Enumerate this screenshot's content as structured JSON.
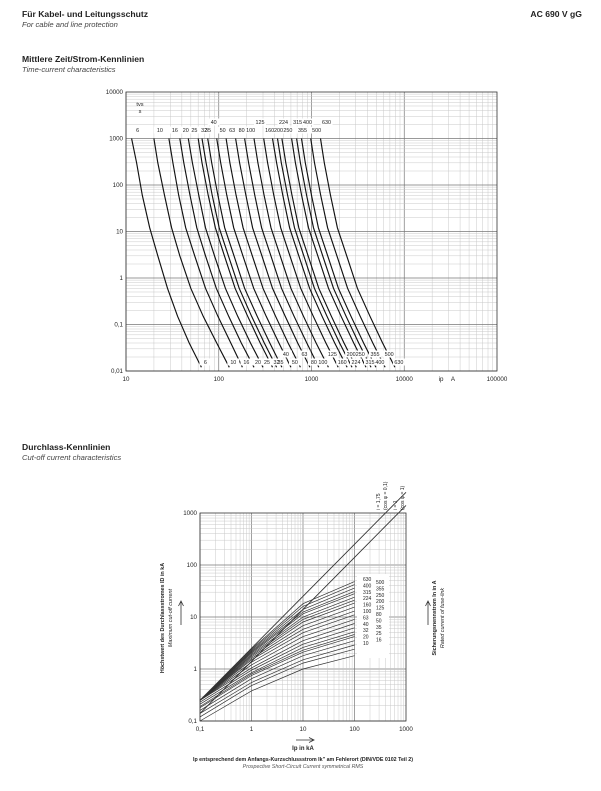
{
  "header": {
    "title_de": "Für Kabel- und Leitungsschutz",
    "title_en": "For cable and line protection",
    "rating": "AC 690 V gG"
  },
  "section1": {
    "title_de": "Mittlere Zeit/Strom-Kennlinien",
    "title_en": "Time-current characteristics"
  },
  "section2": {
    "title_de": "Durchlass-Kennlinien",
    "title_en": "Cut-off current characteristics"
  },
  "chart_data": [
    {
      "type": "line",
      "scale": "log-log",
      "xlabel": "ip A",
      "ylabel": "tvs s",
      "xlim": [
        10,
        100000
      ],
      "ylim": [
        0.01,
        10000
      ],
      "x_ticks": [
        "10",
        "100",
        "1000",
        "10000",
        "100000"
      ],
      "y_ticks": [
        "0,01",
        "0,1",
        "1",
        "10",
        "100",
        "1000",
        "10000"
      ],
      "grid": true,
      "series": [
        {
          "name": "6",
          "x": [
            11.5,
            13,
            15,
            18,
            22,
            28,
            36,
            48,
            65
          ],
          "y": [
            1000,
            300,
            60,
            12,
            3,
            0.6,
            0.15,
            0.04,
            0.012
          ]
        },
        {
          "name": "10",
          "x": [
            20,
            22,
            26,
            31,
            38,
            50,
            68,
            95,
            130
          ],
          "y": [
            1000,
            300,
            60,
            12,
            3,
            0.6,
            0.15,
            0.04,
            0.012
          ]
        },
        {
          "name": "16",
          "x": [
            29,
            32,
            37,
            44,
            55,
            72,
            98,
            135,
            180
          ],
          "y": [
            1000,
            300,
            60,
            12,
            3,
            0.6,
            0.15,
            0.04,
            0.012
          ]
        },
        {
          "name": "20",
          "x": [
            38,
            42,
            49,
            58,
            72,
            94,
            128,
            175,
            240
          ],
          "y": [
            1000,
            300,
            60,
            12,
            3,
            0.6,
            0.15,
            0.04,
            0.012
          ]
        },
        {
          "name": "25",
          "x": [
            47,
            52,
            61,
            72,
            90,
            118,
            160,
            220,
            300
          ],
          "y": [
            1000,
            300,
            60,
            12,
            3,
            0.6,
            0.15,
            0.04,
            0.012
          ]
        },
        {
          "name": "32",
          "x": [
            60,
            66,
            77,
            92,
            115,
            150,
            205,
            280,
            380
          ],
          "y": [
            1000,
            300,
            60,
            12,
            3,
            0.6,
            0.15,
            0.04,
            0.012
          ]
        },
        {
          "name": "35",
          "x": [
            66,
            73,
            85,
            101,
            127,
            166,
            226,
            310,
            420
          ],
          "y": [
            1000,
            300,
            60,
            12,
            3,
            0.6,
            0.15,
            0.04,
            0.012
          ]
        },
        {
          "name": "40",
          "x": [
            76,
            84,
            98,
            116,
            146,
            190,
            260,
            355,
            480
          ],
          "y": [
            1000,
            300,
            60,
            12,
            3,
            0.6,
            0.15,
            0.04,
            0.012
          ]
        },
        {
          "name": "50",
          "x": [
            95,
            105,
            122,
            145,
            182,
            238,
            325,
            445,
            600
          ],
          "y": [
            1000,
            300,
            60,
            12,
            3,
            0.6,
            0.15,
            0.04,
            0.012
          ]
        },
        {
          "name": "63",
          "x": [
            120,
            132,
            154,
            183,
            230,
            300,
            410,
            560,
            760
          ],
          "y": [
            1000,
            300,
            60,
            12,
            3,
            0.6,
            0.15,
            0.04,
            0.012
          ]
        },
        {
          "name": "80",
          "x": [
            152,
            168,
            196,
            232,
            292,
            380,
            520,
            710,
            960
          ],
          "y": [
            1000,
            300,
            60,
            12,
            3,
            0.6,
            0.15,
            0.04,
            0.012
          ]
        },
        {
          "name": "100",
          "x": [
            190,
            210,
            245,
            290,
            365,
            475,
            650,
            890,
            1200
          ],
          "y": [
            1000,
            300,
            60,
            12,
            3,
            0.6,
            0.15,
            0.04,
            0.012
          ]
        },
        {
          "name": "125",
          "x": [
            240,
            264,
            308,
            366,
            460,
            600,
            820,
            1120,
            1520
          ],
          "y": [
            1000,
            300,
            60,
            12,
            3,
            0.6,
            0.15,
            0.04,
            0.012
          ]
        },
        {
          "name": "160",
          "x": [
            305,
            336,
            392,
            465,
            585,
            765,
            1045,
            1430,
            1940
          ],
          "y": [
            1000,
            300,
            60,
            12,
            3,
            0.6,
            0.15,
            0.04,
            0.012
          ]
        },
        {
          "name": "200",
          "x": [
            380,
            420,
            490,
            580,
            730,
            955,
            1300,
            1780,
            2420
          ],
          "y": [
            1000,
            300,
            60,
            12,
            3,
            0.6,
            0.15,
            0.04,
            0.012
          ]
        },
        {
          "name": "224",
          "x": [
            430,
            473,
            552,
            655,
            825,
            1075,
            1470,
            2010,
            2730
          ],
          "y": [
            1000,
            300,
            60,
            12,
            3,
            0.6,
            0.15,
            0.04,
            0.012
          ]
        },
        {
          "name": "250",
          "x": [
            480,
            528,
            616,
            730,
            920,
            1200,
            1640,
            2240,
            3040
          ],
          "y": [
            1000,
            300,
            60,
            12,
            3,
            0.6,
            0.15,
            0.04,
            0.012
          ]
        },
        {
          "name": "315",
          "x": [
            610,
            671,
            783,
            928,
            1170,
            1525,
            2085,
            2850,
            3870
          ],
          "y": [
            1000,
            300,
            60,
            12,
            3,
            0.6,
            0.15,
            0.04,
            0.012
          ]
        },
        {
          "name": "355",
          "x": [
            690,
            759,
            886,
            1050,
            1322,
            1725,
            2360,
            3225,
            4380
          ],
          "y": [
            1000,
            300,
            60,
            12,
            3,
            0.6,
            0.15,
            0.04,
            0.012
          ]
        },
        {
          "name": "400",
          "x": [
            780,
            858,
            1001,
            1187,
            1495,
            1950,
            2665,
            3645,
            4950
          ],
          "y": [
            1000,
            300,
            60,
            12,
            3,
            0.6,
            0.15,
            0.04,
            0.012
          ]
        },
        {
          "name": "500",
          "x": [
            980,
            1078,
            1258,
            1492,
            1878,
            2450,
            3350,
            4580,
            6220
          ],
          "y": [
            1000,
            300,
            60,
            12,
            3,
            0.6,
            0.15,
            0.04,
            0.012
          ]
        },
        {
          "name": "630",
          "x": [
            1250,
            1375,
            1604,
            1903,
            2396,
            3125,
            4272,
            5840,
            7930
          ],
          "y": [
            1000,
            300,
            60,
            12,
            3,
            0.6,
            0.15,
            0.04,
            0.012
          ]
        }
      ],
      "top_labels": [
        "6",
        "10",
        "16",
        "20",
        "25",
        "32",
        "35",
        "40",
        "50",
        "63",
        "80",
        "100",
        "125",
        "160",
        "200",
        "224",
        "250",
        "315",
        "355",
        "400",
        "500",
        "630"
      ],
      "bottom_labels": [
        "6",
        "10",
        "16",
        "20",
        "25",
        "32",
        "35",
        "40",
        "50",
        "63",
        "80",
        "100",
        "125",
        "160",
        "200",
        "224",
        "250",
        "315",
        "355",
        "400",
        "500",
        "630"
      ]
    },
    {
      "type": "line",
      "scale": "log-log",
      "xlabel": "Ip in kA",
      "ylabel": "Höchstwert des Durchlassstromes ID in kA",
      "ylabel_en": "Maximum cut-off current",
      "right_label": "Sicherungsnennstrom In in A",
      "right_label_en": "Rated current of fuse-link",
      "caption_de": "Ip entsprechend dem Anfangs-Kurzschlussstrom Ik\" am Fehlerort (DIN/VDE 0102 Teil 2)",
      "caption_en": "Prospective Short-Circuit Current symmetrical RMS",
      "xlim": [
        0.1,
        1000
      ],
      "ylim": [
        0.1,
        1000
      ],
      "x_ticks": [
        "0,1",
        "1",
        "10",
        "100",
        "1000"
      ],
      "y_ticks": [
        "0,1",
        "1",
        "10",
        "100",
        "1000"
      ],
      "grid": true,
      "envelope_labels": [
        "i = 1,75",
        "(cos φ = 0,1)",
        "i = 1",
        "(cos φ = 1)"
      ],
      "rating_labels": [
        "630",
        "500",
        "400",
        "355",
        "315",
        "250",
        "224",
        "200",
        "160",
        "125",
        "100",
        "80",
        "63",
        "50",
        "40",
        "35",
        "32",
        "25",
        "20",
        "16",
        "10"
      ],
      "series": [
        {
          "name": "i = 1,75",
          "x": [
            0.1,
            1,
            10,
            100,
            1000
          ],
          "y": [
            0.25,
            2.5,
            25,
            250,
            2500
          ]
        },
        {
          "name": "i = 1",
          "x": [
            0.1,
            1,
            10,
            100,
            1000
          ],
          "y": [
            0.14,
            1.4,
            14,
            140,
            1400
          ]
        },
        {
          "name": "630",
          "x": [
            0.1,
            1,
            10,
            100
          ],
          "y": [
            0.25,
            2.4,
            18,
            48
          ]
        },
        {
          "name": "500",
          "x": [
            0.1,
            1,
            10,
            100
          ],
          "y": [
            0.25,
            2.3,
            16,
            42
          ]
        },
        {
          "name": "400",
          "x": [
            0.1,
            1,
            10,
            100
          ],
          "y": [
            0.25,
            2.2,
            14,
            36
          ]
        },
        {
          "name": "355",
          "x": [
            0.1,
            1,
            10,
            100
          ],
          "y": [
            0.25,
            2.1,
            12.5,
            31
          ]
        },
        {
          "name": "315",
          "x": [
            0.1,
            1,
            10,
            100
          ],
          "y": [
            0.25,
            2.0,
            11.5,
            28
          ]
        },
        {
          "name": "250",
          "x": [
            0.1,
            1,
            10,
            100
          ],
          "y": [
            0.25,
            1.9,
            10,
            24
          ]
        },
        {
          "name": "224",
          "x": [
            0.1,
            1,
            10,
            100
          ],
          "y": [
            0.25,
            1.8,
            9,
            21
          ]
        },
        {
          "name": "200",
          "x": [
            0.1,
            1,
            10,
            100
          ],
          "y": [
            0.25,
            1.7,
            8,
            18.5
          ]
        },
        {
          "name": "160",
          "x": [
            0.1,
            1,
            10,
            100
          ],
          "y": [
            0.25,
            1.6,
            6.8,
            15.5
          ]
        },
        {
          "name": "125",
          "x": [
            0.1,
            1,
            10,
            100
          ],
          "y": [
            0.25,
            1.5,
            5.8,
            13
          ]
        },
        {
          "name": "100",
          "x": [
            0.1,
            1,
            10,
            100
          ],
          "y": [
            0.25,
            1.35,
            5,
            11
          ]
        },
        {
          "name": "80",
          "x": [
            0.1,
            1,
            10,
            100
          ],
          "y": [
            0.25,
            1.2,
            4.2,
            9
          ]
        },
        {
          "name": "63",
          "x": [
            0.1,
            1,
            10,
            100
          ],
          "y": [
            0.25,
            1.05,
            3.5,
            7.5
          ]
        },
        {
          "name": "50",
          "x": [
            0.1,
            1,
            10,
            100
          ],
          "y": [
            0.23,
            0.95,
            3,
            6.2
          ]
        },
        {
          "name": "40",
          "x": [
            0.1,
            1,
            10,
            100
          ],
          "y": [
            0.21,
            0.85,
            2.6,
            5.2
          ]
        },
        {
          "name": "35",
          "x": [
            0.1,
            1,
            10,
            100
          ],
          "y": [
            0.19,
            0.8,
            2.3,
            4.6
          ]
        },
        {
          "name": "32",
          "x": [
            0.1,
            1,
            10,
            100
          ],
          "y": [
            0.18,
            0.75,
            2.1,
            4.2
          ]
        },
        {
          "name": "25",
          "x": [
            0.1,
            1,
            10,
            100
          ],
          "y": [
            0.16,
            0.65,
            1.8,
            3.5
          ]
        },
        {
          "name": "20",
          "x": [
            0.1,
            1,
            10,
            100
          ],
          "y": [
            0.14,
            0.55,
            1.5,
            2.9
          ]
        },
        {
          "name": "16",
          "x": [
            0.1,
            1,
            10,
            100
          ],
          "y": [
            0.12,
            0.48,
            1.3,
            2.4
          ]
        },
        {
          "name": "10",
          "x": [
            0.1,
            1,
            10,
            100
          ],
          "y": [
            0.1,
            0.38,
            1.0,
            1.8
          ]
        }
      ]
    }
  ]
}
